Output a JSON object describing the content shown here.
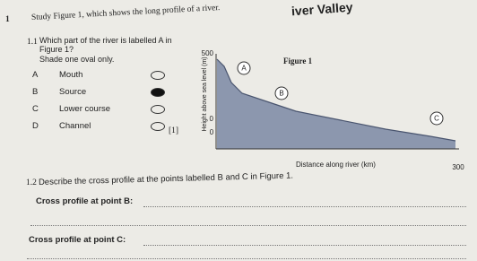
{
  "header": {
    "title": "iver Valley"
  },
  "question": {
    "number": "1",
    "text": "Study Figure 1, which shows the long profile of a river."
  },
  "q1_1": {
    "number": "1.1",
    "text": "Which part of the river is labelled A in Figure 1?",
    "instruction": "Shade one oval only.",
    "options": [
      {
        "letter": "A",
        "label": "Mouth",
        "selected": false
      },
      {
        "letter": "B",
        "label": "Source",
        "selected": true
      },
      {
        "letter": "C",
        "label": "Lower course",
        "selected": false
      },
      {
        "letter": "D",
        "label": "Channel",
        "selected": false
      }
    ],
    "marks": "[1]"
  },
  "figure": {
    "title": "Figure 1",
    "y_label": "Height above sea level (m)",
    "y_ticks": [
      "500",
      "0"
    ],
    "x_ticks": [
      "0",
      "300"
    ],
    "x_label": "Distance along river (km)",
    "points": [
      "A",
      "B",
      "C"
    ]
  },
  "q1_2": {
    "number": "1.2",
    "text": "Describe the cross profile at the points labelled B and C in Figure 1.",
    "answers": [
      {
        "label": "Cross profile at point B:"
      },
      {
        "label": "Cross profile at point C:"
      }
    ]
  }
}
